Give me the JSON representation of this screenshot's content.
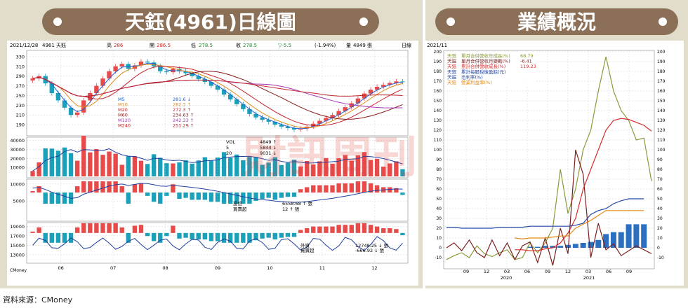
{
  "panels": {
    "left_title": "天鈺(4961)日線圖",
    "right_title": "業績概況",
    "source": "資料來源：CMoney",
    "watermark": "財訊周刊"
  },
  "colors": {
    "frame": "#e2dccb",
    "title_bg": "#8b6f56",
    "title_text": "#ffffff",
    "dot": "#ffffff",
    "up": "#e84a4a",
    "down": "#1aa0b8",
    "grid": "#c8c8c8"
  },
  "chart_data": [
    {
      "type": "candlestick",
      "name": "daily",
      "header": {
        "date": "2021/12/28",
        "stock": "4961 天鈺",
        "high_label": "高",
        "high": "286",
        "open_label": "開",
        "open": "286.5",
        "low_label": "低",
        "low": "278.5",
        "close_label": "收",
        "close": "278.5",
        "change": "▽-5.5",
        "change_pct": "(-1.94%)",
        "volume_label": "量",
        "volume": "4849 張",
        "period": "日線"
      },
      "ylim": [
        170,
        340
      ],
      "yticks": [
        "330",
        "310",
        "290",
        "270",
        "250",
        "230",
        "210",
        "190"
      ],
      "months": [
        "06",
        "07",
        "08",
        "09",
        "10",
        "11",
        "12"
      ],
      "close_series": [
        285,
        290,
        275,
        255,
        240,
        225,
        210,
        215,
        240,
        255,
        270,
        285,
        300,
        310,
        315,
        305,
        312,
        320,
        318,
        310,
        300,
        298,
        305,
        300,
        296,
        290,
        284,
        278,
        270,
        262,
        252,
        242,
        232,
        222,
        212,
        205,
        200,
        196,
        190,
        186,
        183,
        180,
        182,
        186,
        192,
        198,
        204,
        210,
        218,
        226,
        234,
        244,
        254,
        262,
        268,
        272,
        276,
        279,
        278
      ],
      "ma": [
        {
          "name": "M5",
          "value": "281.6 ↓",
          "color": "#1f5fd0"
        },
        {
          "name": "M10",
          "value": "282.3 ↑",
          "color": "#e08a16"
        },
        {
          "name": "M20",
          "value": "272.3 ↑",
          "color": "#c2242b"
        },
        {
          "name": "M60",
          "value": "234.63 ↑",
          "color": "#8b1a1a"
        },
        {
          "name": "M120",
          "value": "242.33 ↑",
          "color": "#a238b4"
        },
        {
          "name": "M240",
          "value": "251.29 ↑",
          "color": "#c2242b"
        }
      ],
      "volume": {
        "ylim": [
          0,
          42000
        ],
        "yticks": [
          "40000",
          "30000",
          "20000",
          "10000"
        ],
        "legend": [
          {
            "name": "VOL",
            "value": "4849 ↑",
            "color": "#000000"
          },
          {
            "name": "5",
            "value": "5844 ↓",
            "color": "#000000"
          },
          {
            "name": "20",
            "value": "9031 ↓",
            "color": "#000000"
          }
        ]
      },
      "investment_trust": {
        "ylim": [
          -500,
          11000
        ],
        "yticks": [
          "10000",
          "5000"
        ],
        "legend_bar": "投信",
        "legend_line": "買賣超",
        "bar_value": "6558.68 ↑ 張",
        "line_value": "12 ↑ 張"
      },
      "foreign": {
        "ylim": [
          11500,
          19500
        ],
        "yticks": [
          "19000",
          "17000",
          "15000",
          "13000"
        ],
        "legend_bar": "外資",
        "legend_line": "買賣超",
        "bar_value": "12748.25 ↓ 張",
        "line_value": "-666.92 ↓ 張"
      },
      "bottom_left_label": "CMoney"
    },
    {
      "type": "line",
      "name": "performance",
      "period": "2021/11",
      "ylim": [
        -20,
        200
      ],
      "yticks": [
        200,
        190,
        180,
        170,
        160,
        150,
        140,
        130,
        120,
        110,
        100,
        90,
        80,
        70,
        60,
        50,
        40,
        30,
        20,
        10,
        0,
        -10
      ],
      "x_ticks": [
        "09",
        "12",
        "03",
        "06",
        "09",
        "12",
        "03",
        "06",
        "09"
      ],
      "years": [
        {
          "label": "2020"
        },
        {
          "label": "2021"
        }
      ],
      "legend": [
        {
          "prefix": "天鈺",
          "name": "單月合併營收年成長(%)",
          "value": "68.79",
          "color": "#8a9a3a"
        },
        {
          "prefix": "天鈺",
          "name": "單月合併營收月變動(%)",
          "value": "-6.41",
          "color": "#7a1f1f"
        },
        {
          "prefix": "天鈺",
          "name": "累計合併營收成長(%)",
          "value": "119.23",
          "color": "#d62b2b"
        },
        {
          "prefix": "天鈺",
          "name": "累計每股稅後盈餘(元)",
          "value": "",
          "color": "#2345a6"
        },
        {
          "prefix": "天鈺",
          "name": "毛利率(%)",
          "value": "",
          "color": "#2345a6"
        },
        {
          "prefix": "天鈺",
          "name": "營業利益率(%)",
          "value": "",
          "color": "#e08a16"
        }
      ],
      "series": [
        {
          "name": "單月合併營收年成長(%)",
          "color": "#8a9a3a",
          "values": [
            -12,
            -8,
            -5,
            -10,
            2,
            -6,
            -9,
            -5,
            -2,
            -12,
            -10,
            5,
            -5,
            5,
            20,
            80,
            35,
            60,
            100,
            120,
            160,
            195,
            160,
            140,
            130,
            110,
            112,
            68
          ]
        },
        {
          "name": "單月合併營收月變動(%)",
          "color": "#7a1f1f",
          "values": [
            0,
            5,
            -3,
            8,
            -5,
            -10,
            8,
            -8,
            5,
            -12,
            2,
            6,
            -15,
            10,
            -18,
            20,
            -6,
            100,
            75,
            -10,
            25,
            -2,
            4,
            -8,
            -3,
            2,
            -2,
            -6
          ]
        },
        {
          "name": "累計合併營收成長(%)",
          "color": "#d62b2b",
          "values": [
            null,
            null,
            null,
            null,
            null,
            null,
            null,
            null,
            null,
            -2,
            -2,
            -3,
            -3,
            -1,
            0,
            5,
            15,
            30,
            60,
            80,
            100,
            120,
            130,
            132,
            131,
            128,
            125,
            119
          ]
        },
        {
          "name": "毛利率(%)",
          "color": "#2345a6",
          "values": [
            21,
            21,
            20,
            20,
            20,
            20,
            20,
            21,
            21,
            21,
            21,
            22,
            22,
            22,
            22,
            22,
            22,
            23,
            25,
            34,
            38,
            40,
            45,
            48,
            50,
            50,
            50,
            null
          ]
        },
        {
          "name": "營業利益率(%)",
          "color": "#e08a16",
          "values": [
            null,
            null,
            null,
            null,
            null,
            null,
            null,
            null,
            null,
            10,
            9,
            10,
            10,
            10,
            11,
            12,
            12,
            20,
            24,
            28,
            33,
            38,
            38,
            38,
            38,
            38,
            38,
            null
          ]
        }
      ],
      "eps_bars": [
        0,
        0,
        0,
        0,
        0,
        0,
        0,
        0,
        0,
        0,
        0,
        1,
        1,
        2,
        2,
        2,
        3,
        4,
        5,
        6,
        8,
        14,
        16,
        16,
        24,
        24,
        24,
        0
      ]
    }
  ]
}
